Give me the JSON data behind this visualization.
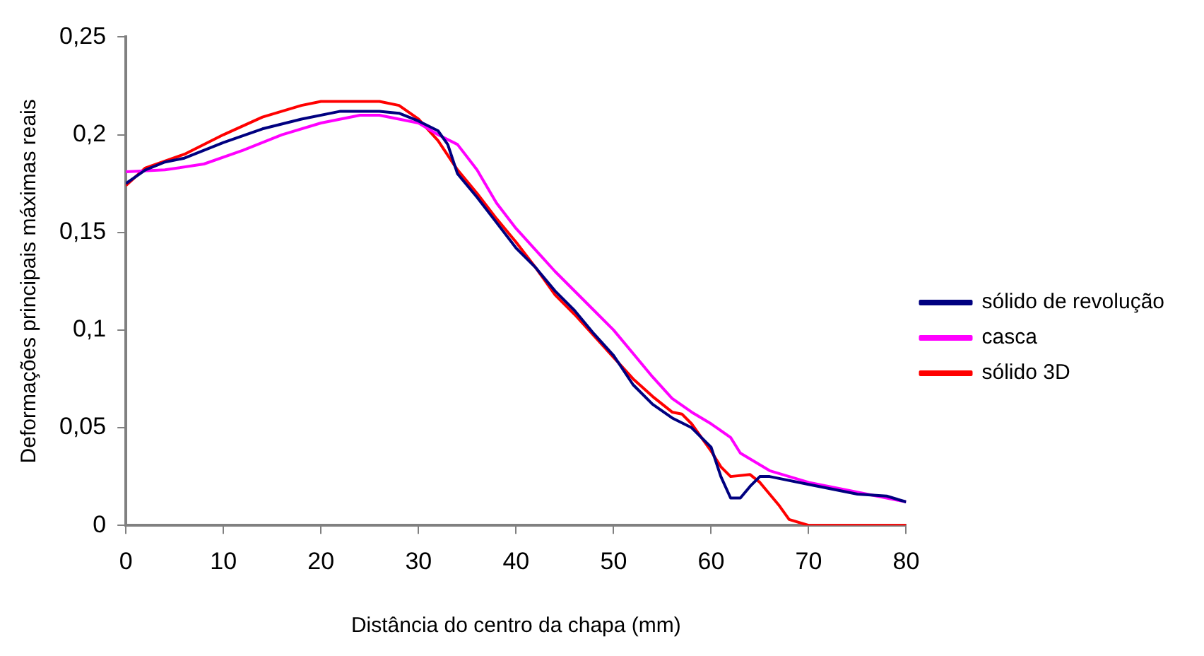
{
  "chart_data": {
    "type": "line",
    "xlabel": "Distância do centro da chapa (mm)",
    "ylabel": "Deformações principais máximas reais",
    "xlim": [
      0,
      80
    ],
    "xticks": [
      0,
      10,
      20,
      30,
      40,
      50,
      60,
      70,
      80
    ],
    "ylim": [
      0,
      0.25
    ],
    "yticks": [
      {
        "value": 0,
        "label": "0"
      },
      {
        "value": 0.05,
        "label": "0,05"
      },
      {
        "value": 0.1,
        "label": "0,1"
      },
      {
        "value": 0.15,
        "label": "0,15"
      },
      {
        "value": 0.2,
        "label": "0,2"
      },
      {
        "value": 0.25,
        "label": "0,25"
      }
    ],
    "grid": false,
    "legend": "right",
    "marker": "none",
    "line_style": "solid",
    "series": [
      {
        "name": "sólido de revolução",
        "color": "#000080",
        "x": [
          0,
          2,
          4,
          6,
          10,
          14,
          18,
          22,
          26,
          28,
          30,
          32,
          33,
          34,
          36,
          38,
          40,
          42,
          44,
          46,
          48,
          50,
          52,
          54,
          56,
          58,
          60,
          61,
          62,
          63,
          64,
          65,
          66,
          70,
          75,
          78,
          80
        ],
        "values": [
          0.175,
          0.182,
          0.186,
          0.188,
          0.196,
          0.203,
          0.208,
          0.212,
          0.212,
          0.211,
          0.207,
          0.202,
          0.195,
          0.18,
          0.168,
          0.155,
          0.142,
          0.132,
          0.12,
          0.11,
          0.098,
          0.087,
          0.072,
          0.062,
          0.055,
          0.05,
          0.04,
          0.025,
          0.014,
          0.014,
          0.02,
          0.025,
          0.025,
          0.021,
          0.016,
          0.015,
          0.012
        ]
      },
      {
        "name": "casca",
        "color": "#ff00ff",
        "x": [
          0,
          4,
          8,
          12,
          16,
          20,
          24,
          26,
          30,
          32,
          34,
          36,
          38,
          40,
          44,
          48,
          50,
          52,
          54,
          56,
          58,
          60,
          62,
          63,
          66,
          70,
          75,
          80
        ],
        "values": [
          0.181,
          0.182,
          0.185,
          0.192,
          0.2,
          0.206,
          0.21,
          0.21,
          0.206,
          0.2,
          0.195,
          0.182,
          0.165,
          0.152,
          0.13,
          0.11,
          0.1,
          0.088,
          0.076,
          0.065,
          0.058,
          0.052,
          0.045,
          0.037,
          0.028,
          0.022,
          0.017,
          0.012
        ]
      },
      {
        "name": "sólido 3D",
        "color": "#ff0000",
        "x": [
          0,
          2,
          6,
          10,
          14,
          18,
          20,
          26,
          28,
          30,
          32,
          34,
          36,
          38,
          40,
          42,
          44,
          46,
          48,
          50,
          52,
          54,
          56,
          57,
          58,
          60,
          61,
          62,
          64,
          65,
          67,
          68,
          70,
          80
        ],
        "values": [
          0.174,
          0.183,
          0.19,
          0.2,
          0.209,
          0.215,
          0.217,
          0.217,
          0.215,
          0.208,
          0.197,
          0.182,
          0.17,
          0.157,
          0.145,
          0.132,
          0.118,
          0.108,
          0.097,
          0.086,
          0.075,
          0.066,
          0.058,
          0.057,
          0.052,
          0.038,
          0.03,
          0.025,
          0.026,
          0.022,
          0.01,
          0.003,
          0,
          0
        ]
      }
    ]
  }
}
